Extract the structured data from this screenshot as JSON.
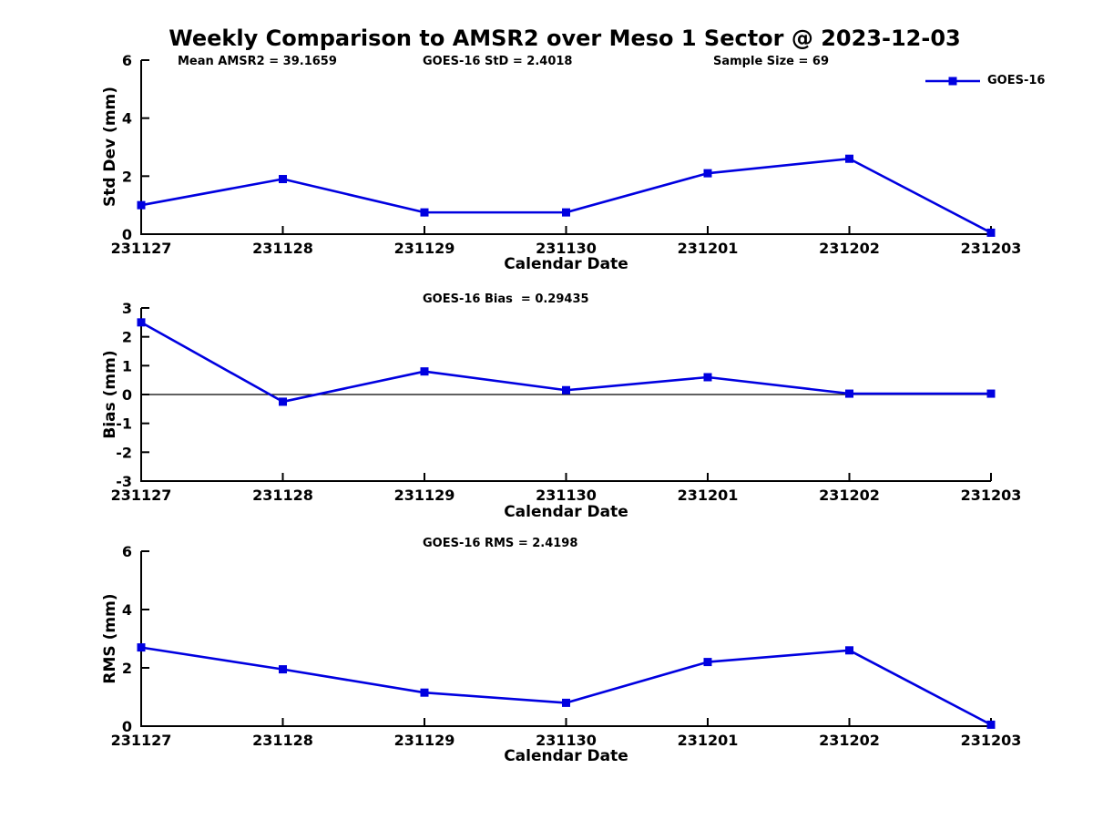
{
  "header": {
    "title": "Weekly Comparison to AMSR2 over Meso 1 Sector @ 2023-12-03",
    "mean_amsr2": "Mean AMSR2 = 39.1659",
    "goes16_std": "GOES-16 StD = 2.4018",
    "sample_size": "Sample Size = 69"
  },
  "legend": {
    "label": "GOES-16",
    "marker": "square"
  },
  "colors": {
    "line": "#0000e0",
    "axis": "#000000",
    "text": "#000000",
    "background": "#ffffff"
  },
  "chart_data": [
    {
      "type": "line",
      "name": "std-dev-subplot",
      "title": "",
      "xlabel": "Calendar Date",
      "ylabel": "Std Dev (mm)",
      "categories": [
        "231127",
        "231128",
        "231129",
        "231130",
        "231201",
        "231202",
        "231203"
      ],
      "series": [
        {
          "name": "GOES-16",
          "values": [
            1.0,
            1.9,
            0.75,
            0.75,
            2.1,
            2.6,
            0.05
          ]
        }
      ],
      "ylim": [
        0,
        6
      ],
      "yticks": [
        0,
        2,
        4,
        6
      ],
      "grid": false,
      "zero_line": false,
      "marker": "square",
      "legend_position": "top-right"
    },
    {
      "type": "line",
      "name": "bias-subplot",
      "title": "GOES-16 Bias  = 0.29435",
      "xlabel": "Calendar Date",
      "ylabel": "Bias (mm)",
      "categories": [
        "231127",
        "231128",
        "231129",
        "231130",
        "231201",
        "231202",
        "231203"
      ],
      "series": [
        {
          "name": "GOES-16",
          "values": [
            2.5,
            -0.25,
            0.8,
            0.15,
            0.6,
            0.03,
            0.03
          ]
        }
      ],
      "ylim": [
        -3,
        3
      ],
      "yticks": [
        -3,
        -2,
        -1,
        0,
        1,
        2,
        3
      ],
      "grid": false,
      "zero_line": true,
      "marker": "square",
      "legend_position": "none"
    },
    {
      "type": "line",
      "name": "rms-subplot",
      "title": "GOES-16 RMS = 2.4198",
      "xlabel": "Calendar Date",
      "ylabel": "RMS (mm)",
      "categories": [
        "231127",
        "231128",
        "231129",
        "231130",
        "231201",
        "231202",
        "231203"
      ],
      "series": [
        {
          "name": "GOES-16",
          "values": [
            2.7,
            1.95,
            1.15,
            0.8,
            2.2,
            2.6,
            0.05
          ]
        }
      ],
      "ylim": [
        0,
        6
      ],
      "yticks": [
        0,
        2,
        4,
        6
      ],
      "grid": false,
      "zero_line": false,
      "marker": "square",
      "legend_position": "none"
    }
  ]
}
